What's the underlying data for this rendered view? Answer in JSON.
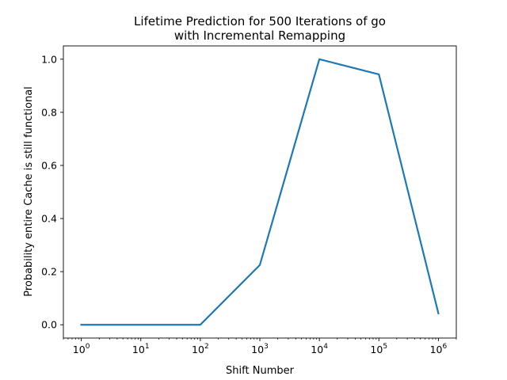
{
  "chart_data": {
    "type": "line",
    "title_lines": [
      "Lifetime Prediction for 500 Iterations of go",
      "with Incremental Remapping"
    ],
    "xlabel": "Shift Number",
    "ylabel": "Probability entire Cache is still functional",
    "x_scale": "log",
    "x": [
      1,
      10,
      100,
      1000,
      10000,
      100000,
      1000000
    ],
    "xlim": [
      0.5,
      2000000
    ],
    "ylim": [
      -0.05,
      1.05
    ],
    "x_ticks": [
      {
        "value": 1,
        "base": "10",
        "exp": "0"
      },
      {
        "value": 10,
        "base": "10",
        "exp": "1"
      },
      {
        "value": 100,
        "base": "10",
        "exp": "2"
      },
      {
        "value": 1000,
        "base": "10",
        "exp": "3"
      },
      {
        "value": 10000,
        "base": "10",
        "exp": "4"
      },
      {
        "value": 100000,
        "base": "10",
        "exp": "5"
      },
      {
        "value": 1000000,
        "base": "10",
        "exp": "6"
      }
    ],
    "y_ticks": [
      {
        "value": 0.0,
        "label": "0.0"
      },
      {
        "value": 0.2,
        "label": "0.2"
      },
      {
        "value": 0.4,
        "label": "0.4"
      },
      {
        "value": 0.6,
        "label": "0.6"
      },
      {
        "value": 0.8,
        "label": "0.8"
      },
      {
        "value": 1.0,
        "label": "1.0"
      }
    ],
    "series": [
      {
        "values": [
          0.0,
          0.0,
          0.0,
          0.225,
          1.0,
          0.943,
          0.043
        ],
        "color": "#1f77b4"
      }
    ],
    "grid": false,
    "legend": "none"
  }
}
